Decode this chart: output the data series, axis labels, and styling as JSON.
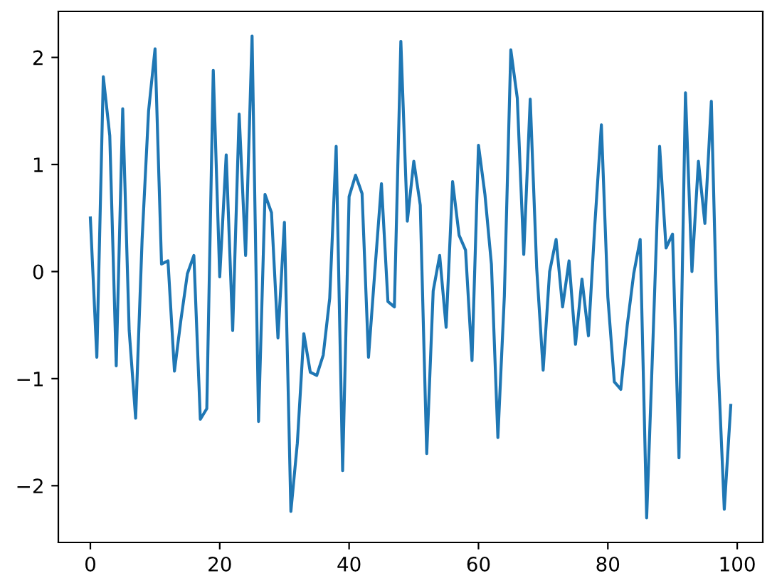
{
  "chart_data": {
    "type": "line",
    "x": [
      0,
      1,
      2,
      3,
      4,
      5,
      6,
      7,
      8,
      9,
      10,
      11,
      12,
      13,
      14,
      15,
      16,
      17,
      18,
      19,
      20,
      21,
      22,
      23,
      24,
      25,
      26,
      27,
      28,
      29,
      30,
      31,
      32,
      33,
      34,
      35,
      36,
      37,
      38,
      39,
      40,
      41,
      42,
      43,
      44,
      45,
      46,
      47,
      48,
      49,
      50,
      51,
      52,
      53,
      54,
      55,
      56,
      57,
      58,
      59,
      60,
      61,
      62,
      63,
      64,
      65,
      66,
      67,
      68,
      69,
      70,
      71,
      72,
      73,
      74,
      75,
      76,
      77,
      78,
      79,
      80,
      81,
      82,
      83,
      84,
      85,
      86,
      87,
      88,
      89,
      90,
      91,
      92,
      93,
      94,
      95,
      96,
      97,
      98,
      99
    ],
    "series": [
      {
        "color": "#1f77b4",
        "values": [
          0.5,
          -0.8,
          1.82,
          1.27,
          -0.88,
          1.52,
          -0.55,
          -1.37,
          0.3,
          1.5,
          2.08,
          0.07,
          0.1,
          -0.93,
          -0.45,
          -0.02,
          0.15,
          -1.38,
          -1.28,
          1.88,
          -0.05,
          1.09,
          -0.55,
          1.47,
          0.15,
          2.2,
          -1.4,
          0.72,
          0.55,
          -0.62,
          0.46,
          -2.24,
          -1.6,
          -0.58,
          -0.94,
          -0.97,
          -0.78,
          -0.25,
          1.17,
          -1.86,
          0.7,
          0.9,
          0.73,
          -0.8,
          0.02,
          0.82,
          -0.28,
          -0.33,
          2.15,
          0.47,
          1.03,
          0.62,
          -1.7,
          -0.18,
          0.15,
          -0.52,
          0.84,
          0.34,
          0.2,
          -0.83,
          1.18,
          0.72,
          0.07,
          -1.55,
          -0.23,
          2.07,
          1.62,
          0.16,
          1.61,
          0.03,
          -0.92,
          0.0,
          0.3,
          -0.33,
          0.1,
          -0.68,
          -0.07,
          -0.6,
          0.45,
          1.37,
          -0.24,
          -1.03,
          -1.1,
          -0.5,
          -0.02,
          0.3,
          -2.3,
          -0.6,
          1.17,
          0.22,
          0.35,
          -1.74,
          1.67,
          0.0,
          1.03,
          0.45,
          1.59,
          -0.8,
          -2.22,
          -1.25
        ]
      }
    ],
    "xlim": [
      -4.95,
      103.95
    ],
    "ylim": [
      -2.53,
      2.43
    ],
    "xticks": [
      0,
      20,
      40,
      60,
      80,
      100
    ],
    "yticks": [
      {
        "value": -2,
        "label": "−2"
      },
      {
        "value": -1,
        "label": "−1"
      },
      0,
      1,
      2
    ],
    "grid": false,
    "marker": "none",
    "line_style": "solid"
  }
}
